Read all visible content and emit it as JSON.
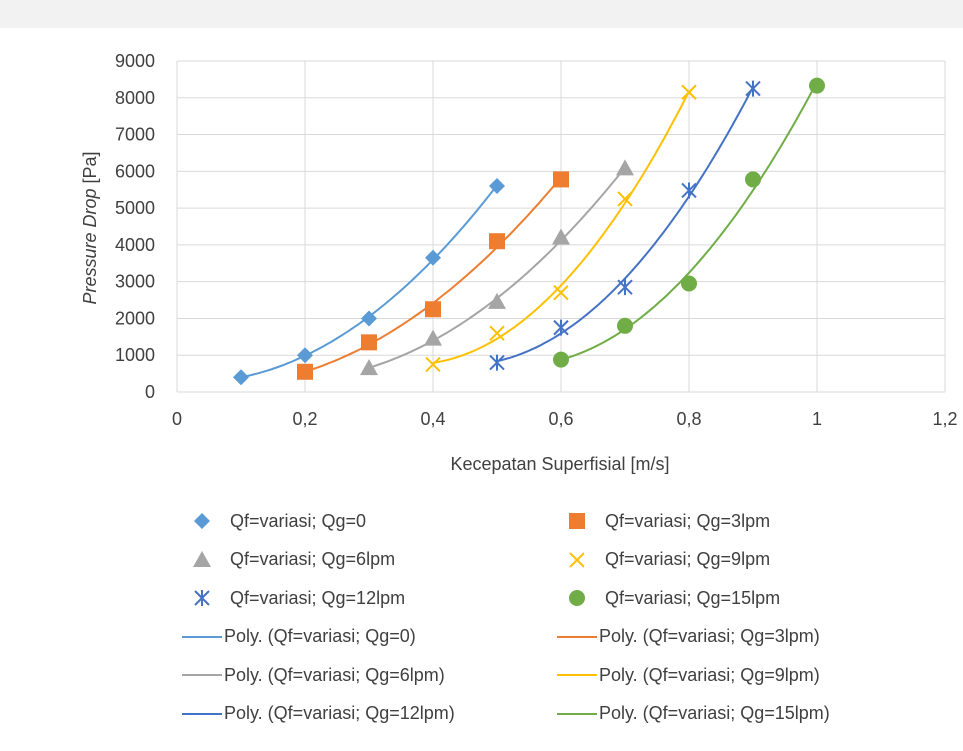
{
  "chart_data": {
    "type": "scatter",
    "title": "",
    "xlabel": "Kecepatan Superfisial [m/s]",
    "ylabel_italic": "Pressure Drop",
    "ylabel_unit": " [Pa]",
    "xlim": [
      0,
      1.2
    ],
    "ylim": [
      0,
      9000
    ],
    "x_ticks": [
      "0",
      "0,2",
      "0,4",
      "0,6",
      "0,8",
      "1",
      "1,2"
    ],
    "y_ticks": [
      "0",
      "1000",
      "2000",
      "3000",
      "4000",
      "5000",
      "6000",
      "7000",
      "8000",
      "9000"
    ],
    "grid": true,
    "legend_position": "bottom",
    "series": [
      {
        "name": "Qf=variasi; Qg=0",
        "color": "#5b9bd5",
        "marker": "diamond",
        "x": [
          0.1,
          0.2,
          0.3,
          0.4,
          0.5
        ],
        "y": [
          400,
          1000,
          2000,
          3650,
          5600
        ]
      },
      {
        "name": "Qf=variasi; Qg=3lpm",
        "color": "#ed7d31",
        "marker": "square",
        "x": [
          0.2,
          0.3,
          0.4,
          0.5,
          0.6
        ],
        "y": [
          550,
          1350,
          2250,
          4100,
          5780
        ]
      },
      {
        "name": "Qf=variasi; Qg=6lpm",
        "color": "#a5a5a5",
        "marker": "triangle",
        "x": [
          0.3,
          0.4,
          0.5,
          0.6,
          0.7
        ],
        "y": [
          650,
          1450,
          2450,
          4200,
          6080
        ]
      },
      {
        "name": "Qf=variasi; Qg=9lpm",
        "color": "#ffc000",
        "marker": "x",
        "x": [
          0.4,
          0.5,
          0.6,
          0.7,
          0.8
        ],
        "y": [
          750,
          1600,
          2700,
          5250,
          8150
        ]
      },
      {
        "name": "Qf=variasi; Qg=12lpm",
        "color": "#4472c4",
        "marker": "star",
        "x": [
          0.5,
          0.6,
          0.7,
          0.8,
          0.9
        ],
        "y": [
          800,
          1750,
          2850,
          5480,
          8250
        ]
      },
      {
        "name": "Qf=variasi; Qg=15lpm",
        "color": "#70ad47",
        "marker": "circle",
        "x": [
          0.6,
          0.7,
          0.8,
          0.9,
          1.0
        ],
        "y": [
          880,
          1800,
          2950,
          5780,
          8330
        ]
      }
    ],
    "trendlines": [
      {
        "name": "Poly. (Qf=variasi; Qg=0)",
        "color": "#5b9bd5"
      },
      {
        "name": "Poly. (Qf=variasi; Qg=3lpm)",
        "color": "#ed7d31"
      },
      {
        "name": "Poly. (Qf=variasi; Qg=6lpm)",
        "color": "#a5a5a5"
      },
      {
        "name": "Poly. (Qf=variasi; Qg=9lpm)",
        "color": "#ffc000"
      },
      {
        "name": "Poly. (Qf=variasi; Qg=12lpm)",
        "color": "#4472c4"
      },
      {
        "name": "Poly. (Qf=variasi; Qg=15lpm)",
        "color": "#70ad47"
      }
    ]
  }
}
